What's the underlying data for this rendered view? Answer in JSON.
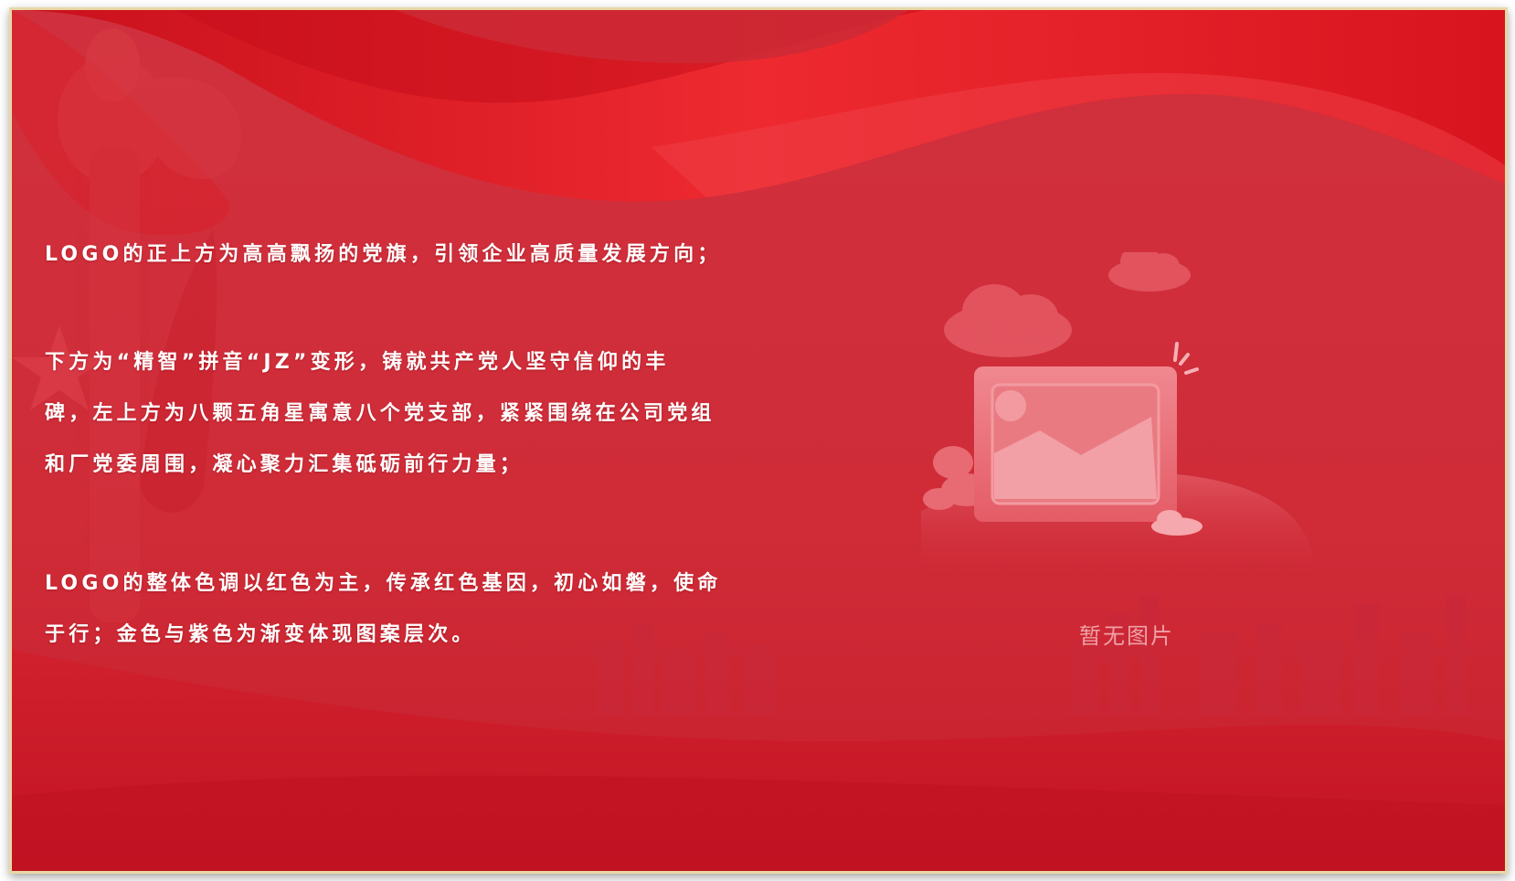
{
  "content": {
    "paragraph1": [
      "LOGO的正上方为高高飘扬的党旗，引领企业高质量发展方向；"
    ],
    "paragraph2": [
      "下方为“精智”拼音“JZ”变形，铸就共产党人坚守信仰的丰",
      "碑，左上方为八颗五角星寓意八个党支部，紧紧围绕在公司党组",
      "和厂党委周围，凝心聚力汇集砥砺前行力量；"
    ],
    "paragraph3": [
      "LOGO的整体色调以红色为主，传承红色基因，初心如磐，使命",
      "于行；金色与紫色为渐变体现图案层次。"
    ]
  },
  "image_placeholder": {
    "caption": "暂无图片",
    "icon": "image-placeholder-icon"
  },
  "colors": {
    "background": "#cf2c38",
    "ribbon": "#e0202c",
    "border": "#e9d8a6",
    "text": "#ffffff",
    "caption": "#f0a0a6"
  }
}
